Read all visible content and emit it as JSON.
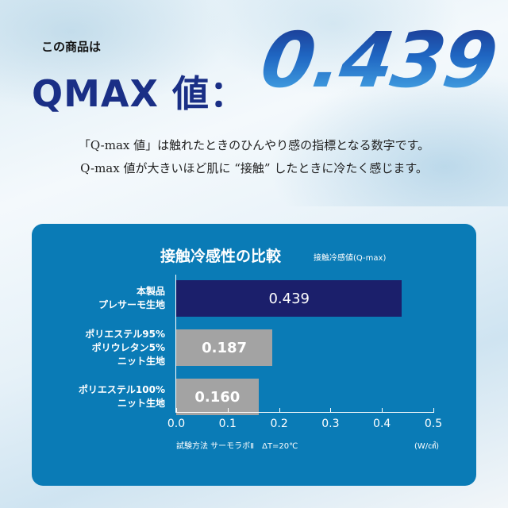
{
  "header": {
    "lead": "この商品は",
    "qmax_label": "QMAX 値：",
    "value": "0.439"
  },
  "description": [
    "「Q-max 値」は触れたときのひんやり感の指標となる数字です。",
    "Q-max 値が大きいほど肌に “接触” したときに冷たく感じます。"
  ],
  "colors": {
    "panel": "#0a7bb6",
    "highlight_bar": "#1b1f6b",
    "other_bar": "#a3a3a3"
  },
  "chart_data": {
    "type": "bar",
    "orientation": "horizontal",
    "title": "接触冷感性の比較",
    "subtitle": "接触冷感値(Q-max)",
    "categories": [
      [
        "本製品",
        "プレサーモ生地"
      ],
      [
        "ポリエステル95%",
        "ポリウレタン5%",
        "ニット生地"
      ],
      [
        "ポリエステル100%",
        "ニット生地"
      ]
    ],
    "values": [
      0.439,
      0.187,
      0.16
    ],
    "value_labels": [
      "0.439",
      "0.187",
      "0.160"
    ],
    "xlim": [
      0,
      0.5
    ],
    "ticks": [
      "0.0",
      "0.1",
      "0.2",
      "0.3",
      "0.4",
      "0.5"
    ],
    "xunit": "(W/㎠)",
    "note": "試験方法 サーモラボⅡ　ΔT=20℃",
    "grid": false
  }
}
